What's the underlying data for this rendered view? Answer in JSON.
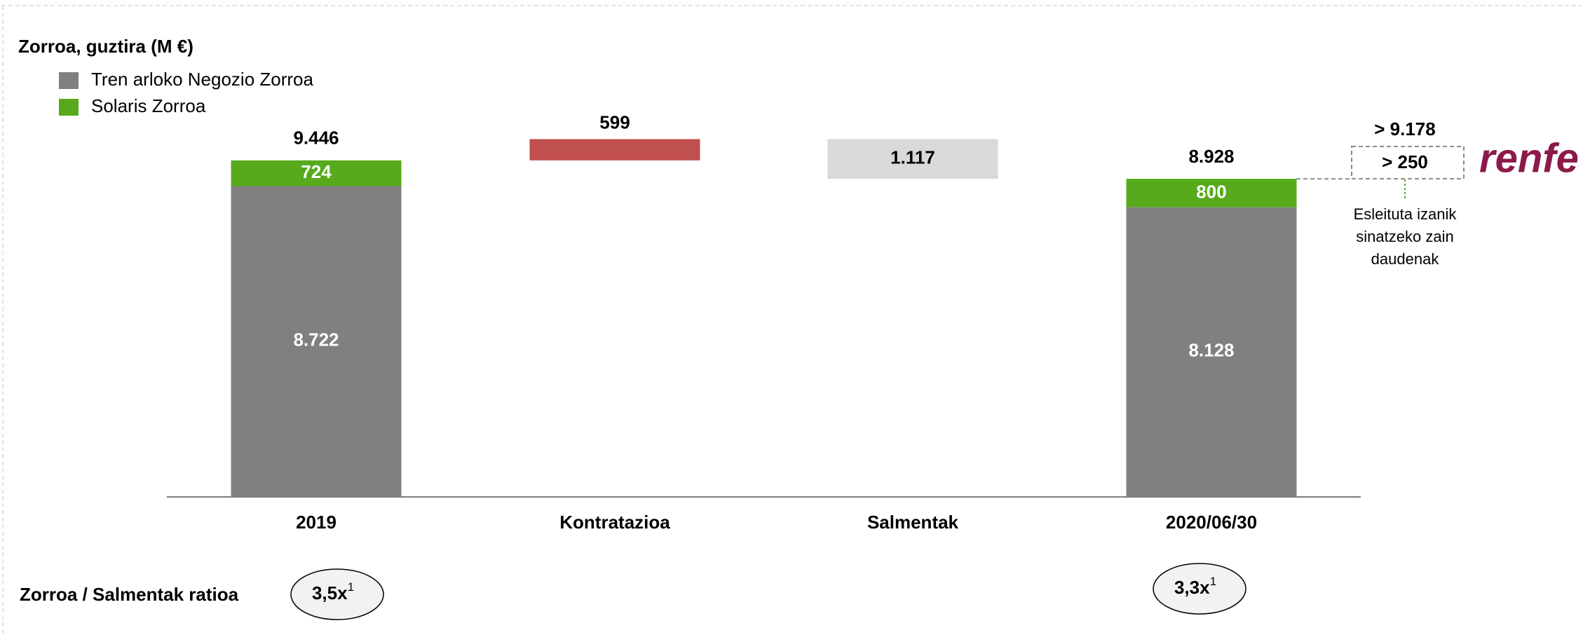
{
  "chart_data": {
    "type": "waterfall",
    "title": "Zorroa, guztira (M €)",
    "categories": [
      "2019",
      "Kontratazioa",
      "Salmentak",
      "2020/06/30"
    ],
    "series": [
      {
        "name": "Tren arloko Negozio Zorroa",
        "color": "#808080",
        "values": [
          8722,
          null,
          null,
          8128
        ],
        "value_labels": [
          "8.722",
          null,
          null,
          "8.128"
        ]
      },
      {
        "name": "Solaris Zorroa",
        "color": "#56aa1c",
        "values": [
          724,
          null,
          null,
          800
        ],
        "value_labels": [
          "724",
          null,
          null,
          "800"
        ]
      }
    ],
    "totals": {
      "values": [
        9446,
        null,
        null,
        8928
      ],
      "value_labels": [
        "9.446",
        null,
        null,
        "8.928"
      ]
    },
    "changes": {
      "values": [
        null,
        599,
        -1117,
        null
      ],
      "value_labels": [
        null,
        "599",
        "1.117",
        null
      ],
      "colors": [
        null,
        "#c0504d",
        "#d9d9d9",
        null
      ]
    },
    "ylim": [
      0,
      11000
    ],
    "annotations": {
      "pending_total": {
        "value": 9178,
        "label": "> 9.178"
      },
      "pending": {
        "value": 250,
        "label": "> 250"
      },
      "pending_note": [
        "Esleituta izanik",
        "sinatzeko zain",
        "daudenak"
      ],
      "logo": "renfe"
    },
    "ratio_label": "Zorroa / Salmentak ratioa",
    "ratios": [
      {
        "text": "3,5x",
        "note": "1"
      },
      null,
      null,
      {
        "text": "3,3x",
        "note": "1"
      }
    ]
  }
}
